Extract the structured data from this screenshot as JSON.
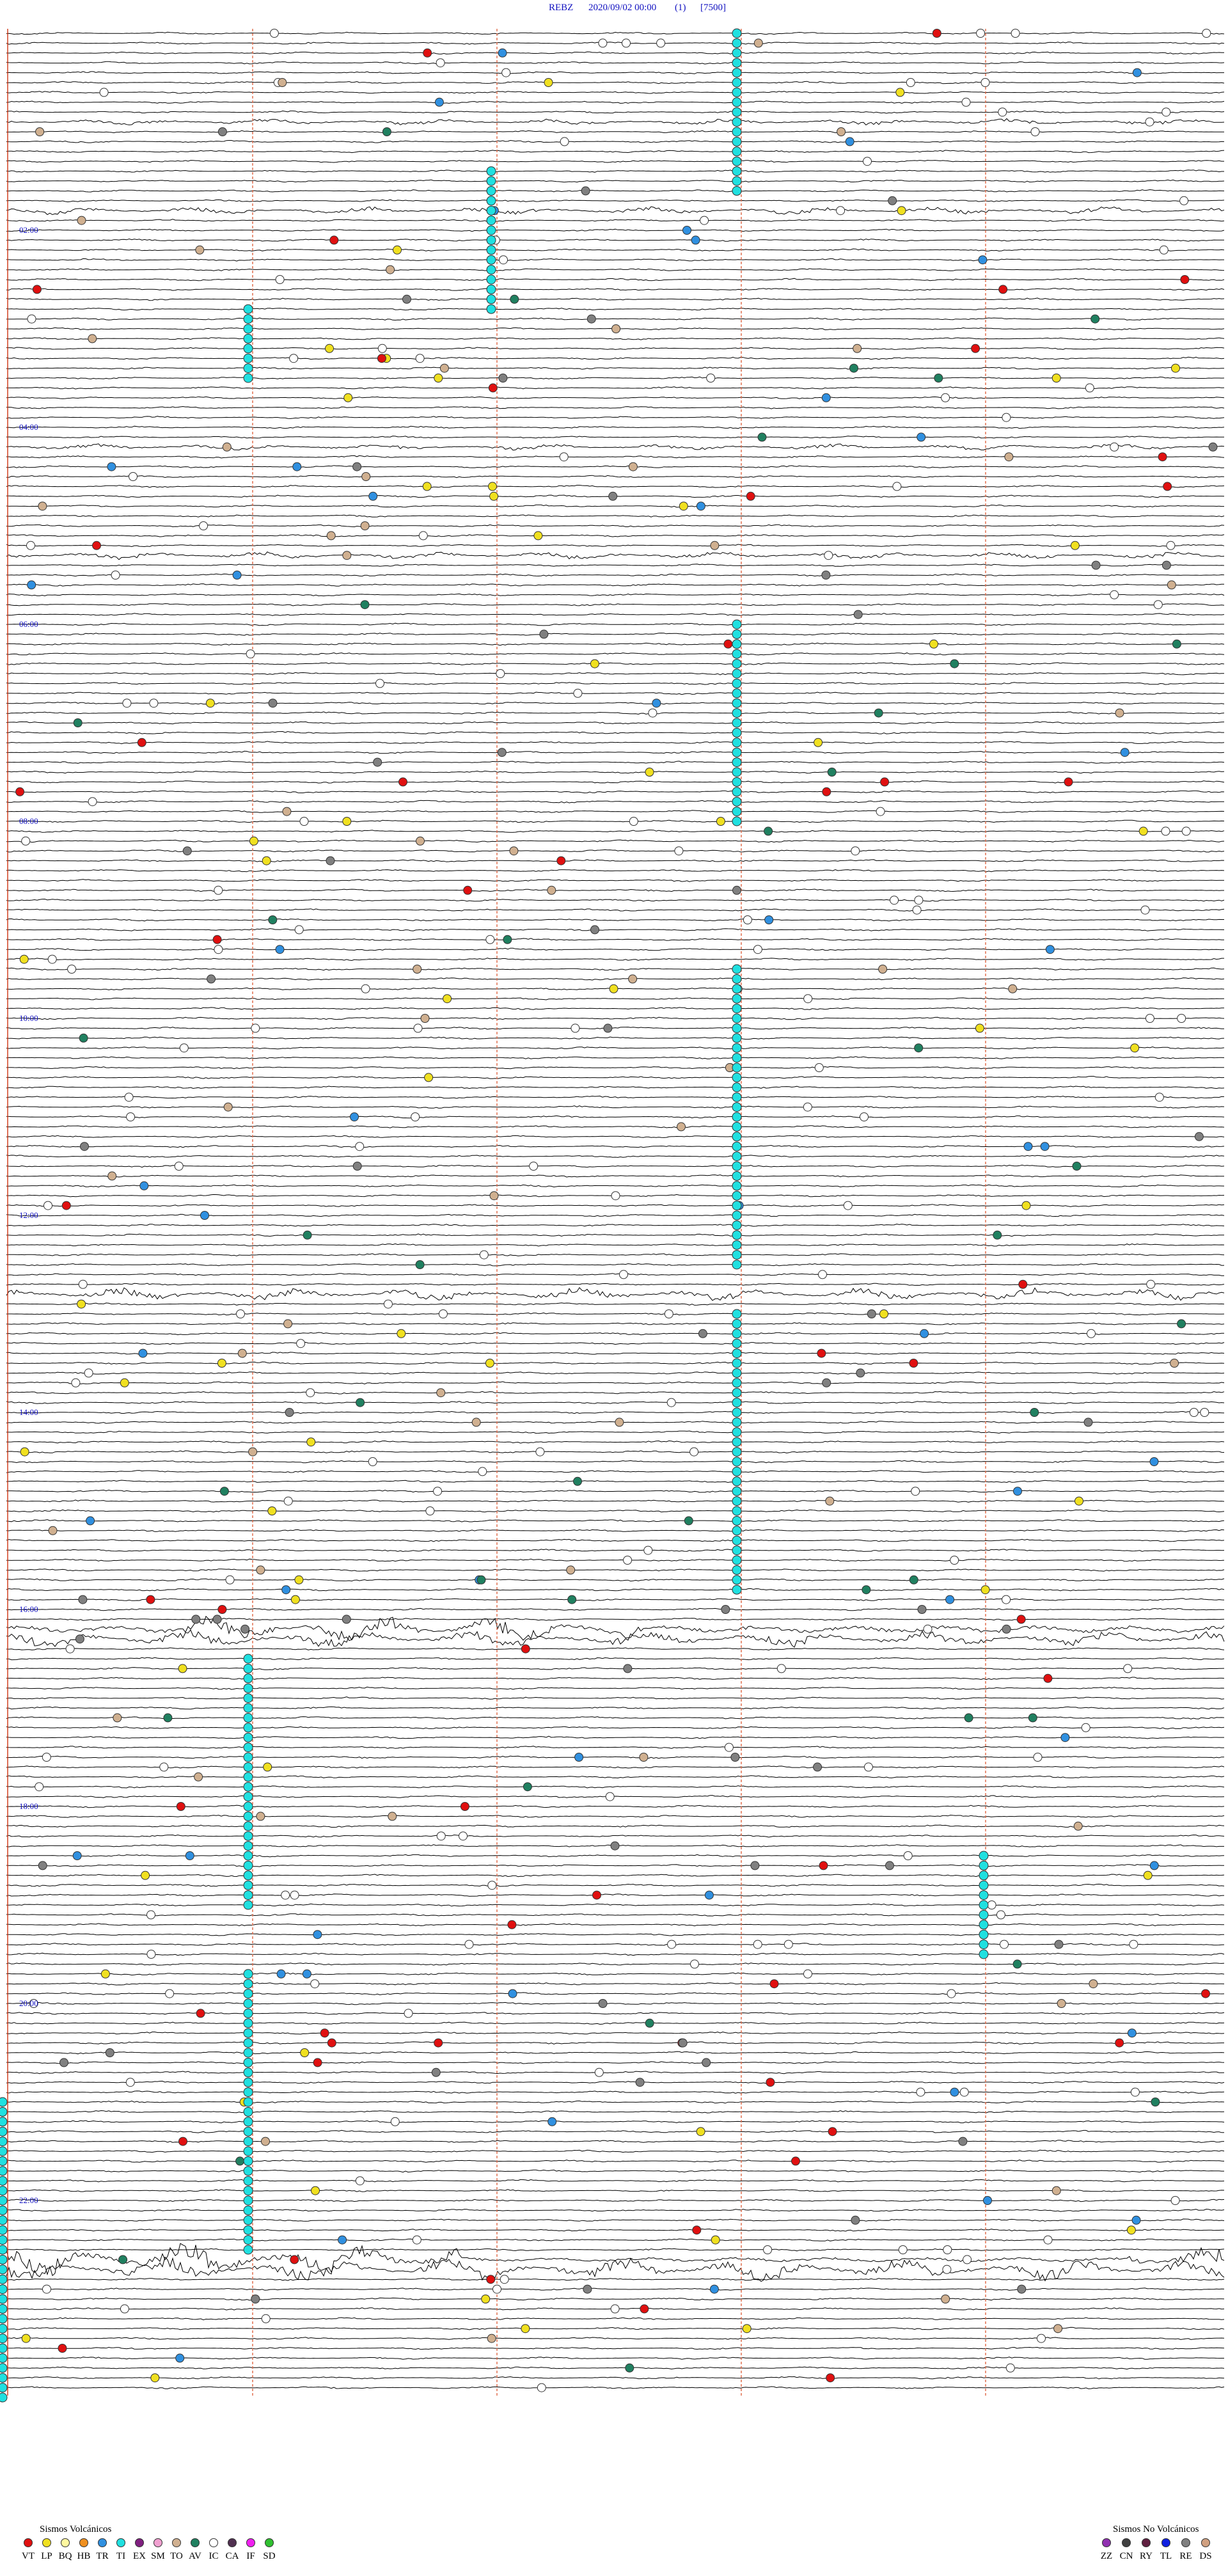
{
  "header": {
    "station": "REBZ",
    "datetime": "2020/09/02 00:00",
    "count": "(1)",
    "scale": "[7500]"
  },
  "hour_labels": [
    "02:00",
    "04:00",
    "06:00",
    "08:00",
    "10:00",
    "12:00",
    "14:00",
    "16:00",
    "18:00",
    "20:00",
    "22:00"
  ],
  "legend": {
    "volcanic": {
      "title": "Sismos Volcánicos",
      "items": [
        {
          "code": "VT",
          "color": "#e01010"
        },
        {
          "code": "LP",
          "color": "#f0e020"
        },
        {
          "code": "BQ",
          "color": "#fff8a0"
        },
        {
          "code": "HB",
          "color": "#f09020"
        },
        {
          "code": "TR",
          "color": "#3090e0"
        },
        {
          "code": "TI",
          "color": "#20e0e0"
        },
        {
          "code": "EX",
          "color": "#802080"
        },
        {
          "code": "SM",
          "color": "#f0a0d0"
        },
        {
          "code": "TO",
          "color": "#d0b090"
        },
        {
          "code": "AV",
          "color": "#208060"
        },
        {
          "code": "IC",
          "color": "#ffffff"
        },
        {
          "code": "CA",
          "color": "#503050"
        },
        {
          "code": "IF",
          "color": "#f020f0"
        },
        {
          "code": "SD",
          "color": "#30c030"
        }
      ]
    },
    "non_volcanic": {
      "title": "Sismos No Volcánicos",
      "items": [
        {
          "code": "ZZ",
          "color": "#9030b0"
        },
        {
          "code": "CN",
          "color": "#404040"
        },
        {
          "code": "RY",
          "color": "#602040"
        },
        {
          "code": "TL",
          "color": "#1020e0"
        },
        {
          "code": "RE",
          "color": "#808080"
        },
        {
          "code": "DS",
          "color": "#d0a080"
        }
      ]
    }
  }
}
